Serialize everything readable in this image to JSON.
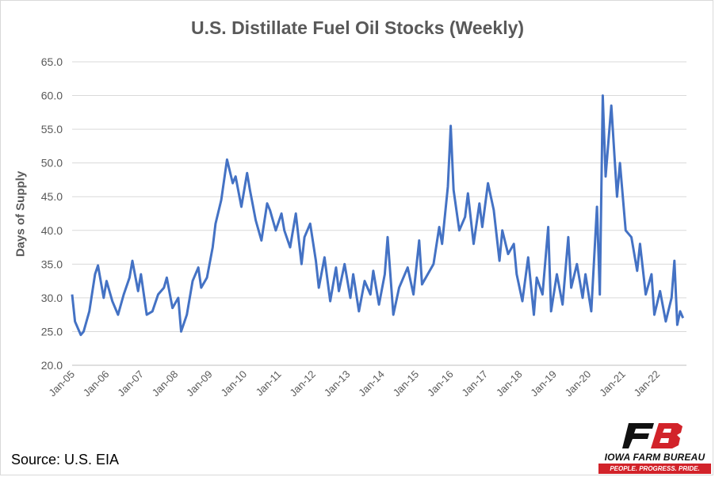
{
  "chart_data": {
    "type": "line",
    "title": "U.S. Distillate Fuel Oil Stocks (Weekly)",
    "ylabel": "Days of Supply",
    "xlabel": "",
    "ylim": [
      20,
      65
    ],
    "yticks": [
      "20.0",
      "25.0",
      "30.0",
      "35.0",
      "40.0",
      "45.0",
      "50.0",
      "55.0",
      "60.0",
      "65.0"
    ],
    "xticks": [
      "Jan-05",
      "Jan-06",
      "Jan-07",
      "Jan-08",
      "Jan-09",
      "Jan-10",
      "Jan-11",
      "Jan-12",
      "Jan-13",
      "Jan-14",
      "Jan-15",
      "Jan-16",
      "Jan-17",
      "Jan-18",
      "Jan-19",
      "Jan-20",
      "Jan-21",
      "Jan-22"
    ],
    "grid": true,
    "legend": "none",
    "line_color": "#4472c4",
    "series": [
      {
        "x": [
          "2005-01",
          "2005-02",
          "2005-04",
          "2005-05",
          "2005-07",
          "2005-09",
          "2005-10",
          "2005-12",
          "2006-01",
          "2006-03",
          "2006-05",
          "2006-07",
          "2006-09",
          "2006-10",
          "2006-12",
          "2007-01",
          "2007-03",
          "2007-05",
          "2007-07",
          "2007-09",
          "2007-10",
          "2007-12",
          "2008-02",
          "2008-03",
          "2008-05",
          "2008-07",
          "2008-09",
          "2008-10",
          "2008-12",
          "2009-02",
          "2009-03",
          "2009-05",
          "2009-07",
          "2009-09",
          "2009-10",
          "2009-12",
          "2010-02",
          "2010-03",
          "2010-05",
          "2010-07",
          "2010-09",
          "2010-10",
          "2010-12",
          "2011-02",
          "2011-03",
          "2011-05",
          "2011-07",
          "2011-09",
          "2011-10",
          "2011-12",
          "2012-02",
          "2012-03",
          "2012-05",
          "2012-07",
          "2012-09",
          "2012-10",
          "2012-12",
          "2013-02",
          "2013-03",
          "2013-05",
          "2013-07",
          "2013-09",
          "2013-10",
          "2013-12",
          "2014-02",
          "2014-03",
          "2014-05",
          "2014-07",
          "2014-09",
          "2014-10",
          "2014-12",
          "2015-02",
          "2015-03",
          "2015-05",
          "2015-07",
          "2015-09",
          "2015-10",
          "2015-12",
          "2016-01",
          "2016-02",
          "2016-04",
          "2016-06",
          "2016-07",
          "2016-09",
          "2016-11",
          "2016-12",
          "2017-02",
          "2017-04",
          "2017-06",
          "2017-07",
          "2017-09",
          "2017-11",
          "2017-12",
          "2018-02",
          "2018-04",
          "2018-06",
          "2018-07",
          "2018-09",
          "2018-11",
          "2018-12",
          "2019-02",
          "2019-04",
          "2019-06",
          "2019-07",
          "2019-09",
          "2019-11",
          "2019-12",
          "2020-02",
          "2020-04",
          "2020-05",
          "2020-06",
          "2020-07",
          "2020-09",
          "2020-11",
          "2020-12",
          "2021-02",
          "2021-04",
          "2021-06",
          "2021-07",
          "2021-09",
          "2021-11",
          "2021-12",
          "2022-02",
          "2022-04",
          "2022-06",
          "2022-07",
          "2022-08",
          "2022-09",
          "2022-10"
        ],
        "y": [
          30.5,
          26.5,
          24.5,
          25.0,
          28.0,
          33.5,
          34.8,
          30.0,
          32.5,
          29.5,
          27.5,
          30.5,
          33.0,
          35.5,
          31.0,
          33.5,
          27.5,
          28.0,
          30.5,
          31.5,
          33.0,
          28.5,
          30.0,
          25.0,
          27.5,
          32.5,
          34.5,
          31.5,
          33.0,
          37.5,
          41.0,
          44.5,
          50.5,
          47.0,
          48.0,
          43.5,
          48.5,
          46.0,
          41.5,
          38.5,
          44.0,
          43.0,
          40.0,
          42.5,
          40.0,
          37.5,
          42.5,
          35.0,
          39.0,
          41.0,
          35.5,
          31.5,
          36.0,
          29.5,
          34.5,
          31.0,
          35.0,
          30.0,
          33.5,
          28.0,
          32.5,
          30.5,
          34.0,
          29.0,
          33.5,
          39.0,
          27.5,
          31.5,
          33.5,
          34.5,
          30.5,
          38.5,
          32.0,
          33.5,
          35.0,
          40.5,
          38.0,
          46.5,
          55.5,
          46.0,
          40.0,
          42.0,
          45.5,
          38.0,
          44.0,
          40.5,
          47.0,
          43.0,
          35.5,
          40.0,
          36.5,
          38.0,
          33.5,
          29.5,
          36.0,
          27.5,
          33.0,
          30.5,
          40.5,
          28.0,
          33.5,
          29.0,
          39.0,
          31.5,
          35.0,
          30.0,
          33.5,
          28.0,
          43.5,
          30.5,
          60.0,
          48.0,
          58.5,
          45.0,
          50.0,
          40.0,
          39.0,
          34.0,
          38.0,
          30.5,
          33.5,
          27.5,
          31.0,
          26.5,
          30.0,
          35.5,
          26.0,
          28.0,
          27.0
        ]
      }
    ]
  },
  "footer": {
    "source": "Source: U.S. EIA"
  },
  "logo": {
    "name": "IOWA FARM BUREAU",
    "tagline": "PEOPLE. PROGRESS. PRIDE.",
    "mark_colors": [
      "#111111",
      "#d2232a"
    ]
  }
}
